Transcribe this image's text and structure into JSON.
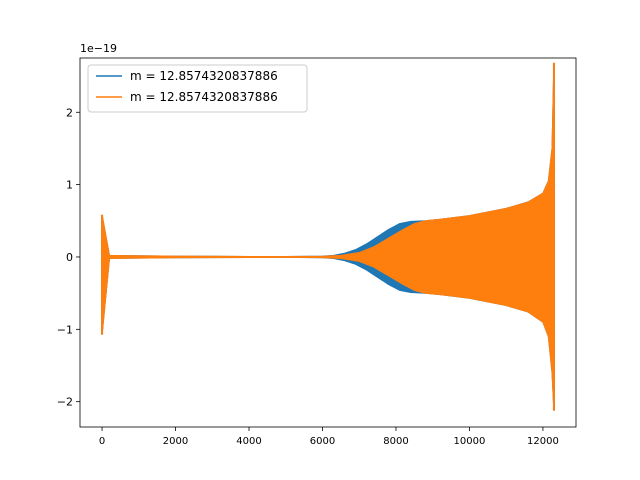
{
  "chart_data": {
    "type": "line",
    "title": "",
    "xlabel": "",
    "ylabel": "",
    "offset_label": "1e−19",
    "xlim": [
      -600,
      12900
    ],
    "ylim": [
      -2.35,
      2.75
    ],
    "xticks": [
      0,
      2000,
      4000,
      6000,
      8000,
      10000,
      12000
    ],
    "xtick_labels": [
      "0",
      "2000",
      "4000",
      "6000",
      "8000",
      "10000",
      "12000"
    ],
    "yticks": [
      -2,
      -1,
      0,
      1,
      2
    ],
    "ytick_labels": [
      "−2",
      "−1",
      "0",
      "1",
      "2"
    ],
    "grid": false,
    "legend_position": "top-left",
    "series": [
      {
        "name": "m = 12.8574320837886",
        "color": "#1f77b4",
        "envelope_x": [
          0,
          200,
          1000,
          2000,
          3000,
          4000,
          5000,
          6000,
          6300,
          6600,
          6900,
          7200,
          7500,
          7800,
          8100,
          8400,
          8800,
          9200,
          10000,
          11000,
          11600,
          12000,
          12150,
          12250,
          12300
        ],
        "envelope_upper": [
          0.58,
          0.02,
          0.015,
          0.01,
          0.008,
          0.006,
          0.005,
          0.01,
          0.02,
          0.05,
          0.1,
          0.18,
          0.28,
          0.38,
          0.46,
          0.49,
          0.5,
          0.52,
          0.57,
          0.67,
          0.76,
          0.88,
          1.05,
          1.5,
          2.68
        ],
        "envelope_lower": [
          -1.07,
          -0.02,
          -0.015,
          -0.01,
          -0.008,
          -0.006,
          -0.005,
          -0.01,
          -0.02,
          -0.05,
          -0.1,
          -0.18,
          -0.28,
          -0.38,
          -0.46,
          -0.49,
          -0.5,
          -0.52,
          -0.57,
          -0.67,
          -0.76,
          -0.9,
          -1.1,
          -1.6,
          -2.12
        ]
      },
      {
        "name": "m = 12.8574320837886",
        "color": "#ff7f0e",
        "envelope_x": [
          0,
          200,
          1000,
          2000,
          3000,
          4000,
          5000,
          6000,
          6500,
          7000,
          7400,
          7800,
          8200,
          8500,
          8800,
          9200,
          10000,
          11000,
          11600,
          12000,
          12150,
          12250,
          12300
        ],
        "envelope_upper": [
          0.58,
          0.02,
          0.015,
          0.01,
          0.008,
          0.006,
          0.005,
          0.008,
          0.02,
          0.06,
          0.14,
          0.26,
          0.38,
          0.46,
          0.5,
          0.52,
          0.57,
          0.67,
          0.76,
          0.88,
          1.05,
          1.5,
          2.68
        ],
        "envelope_lower": [
          -1.07,
          -0.02,
          -0.015,
          -0.01,
          -0.008,
          -0.006,
          -0.005,
          -0.008,
          -0.02,
          -0.06,
          -0.14,
          -0.26,
          -0.38,
          -0.46,
          -0.5,
          -0.52,
          -0.57,
          -0.67,
          -0.76,
          -0.9,
          -1.1,
          -1.6,
          -2.12
        ]
      }
    ]
  }
}
